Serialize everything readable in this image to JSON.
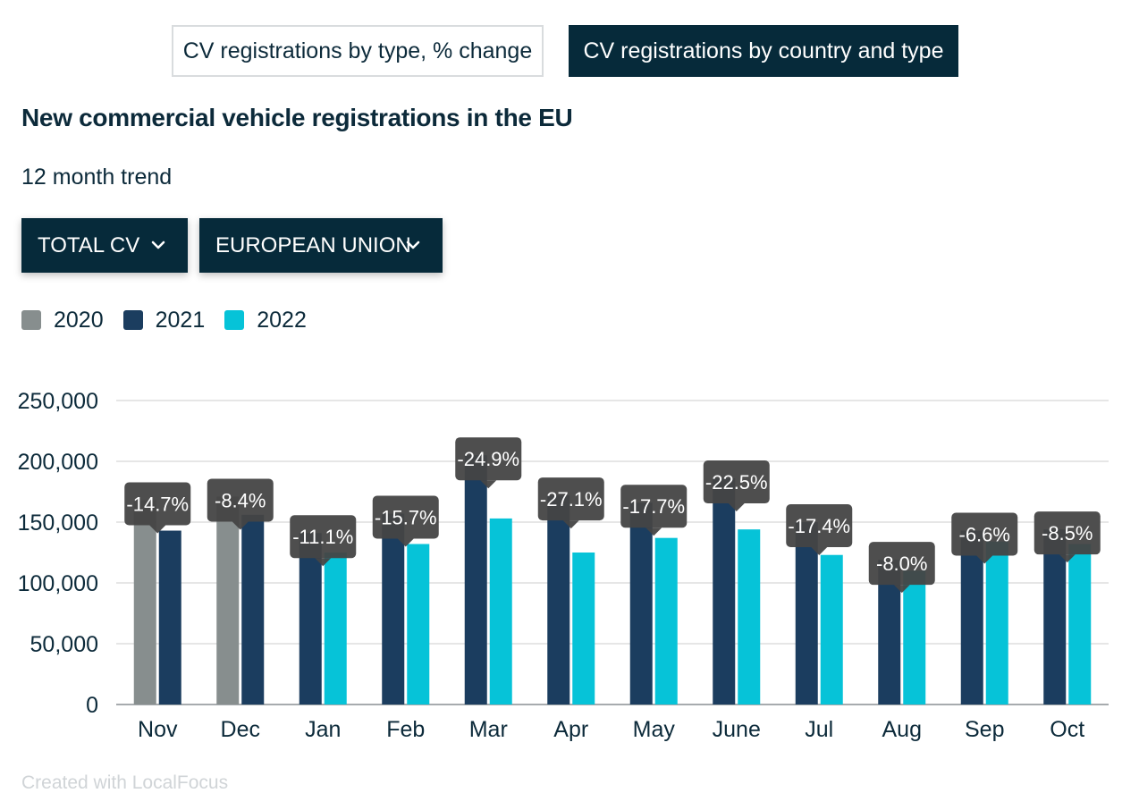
{
  "tabs": [
    {
      "label": "CV registrations by type, % change",
      "active": false
    },
    {
      "label": "CV registrations by country and type",
      "active": true
    }
  ],
  "title": "New commercial vehicle registrations in the EU",
  "subtitle": "12 month trend",
  "filters": {
    "type": {
      "value": "TOTAL CV",
      "icon": "chevron-down-icon"
    },
    "region": {
      "value": "EUROPEAN UNION",
      "icon": "chevron-down-icon"
    }
  },
  "footer": "Created with LocalFocus",
  "colors": {
    "2020": "#878e8e",
    "2021": "#1b3d5f",
    "2022": "#06c3d8",
    "label_bg": "#444444",
    "grid": "#dddddd"
  },
  "chart_data": {
    "type": "bar",
    "categories": [
      "Nov",
      "Dec",
      "Jan",
      "Feb",
      "Mar",
      "Apr",
      "May",
      "June",
      "Jul",
      "Aug",
      "Sep",
      "Oct"
    ],
    "series": [
      {
        "name": "2020",
        "values": [
          168000,
          171000,
          null,
          null,
          null,
          null,
          null,
          null,
          null,
          null,
          null,
          null
        ]
      },
      {
        "name": "2021",
        "values": [
          143000,
          156000,
          141000,
          157000,
          205000,
          172000,
          166000,
          186000,
          150000,
          119000,
          143000,
          144000
        ]
      },
      {
        "name": "2022",
        "values": [
          null,
          null,
          125000,
          132000,
          153000,
          125000,
          137000,
          144000,
          123000,
          110000,
          134000,
          132000
        ]
      }
    ],
    "annotations": [
      "-14.7%",
      "-8.4%",
      "-11.1%",
      "-15.7%",
      "-24.9%",
      "-27.1%",
      "-17.7%",
      "-22.5%",
      "-17.4%",
      "-8.0%",
      "-6.6%",
      "-8.5%"
    ],
    "yticks": [
      "0",
      "50,000",
      "100,000",
      "150,000",
      "200,000",
      "250,000"
    ],
    "ylim": [
      0,
      250000
    ],
    "grid": true,
    "legend_position": "top-left",
    "xlabel": "",
    "ylabel": ""
  }
}
